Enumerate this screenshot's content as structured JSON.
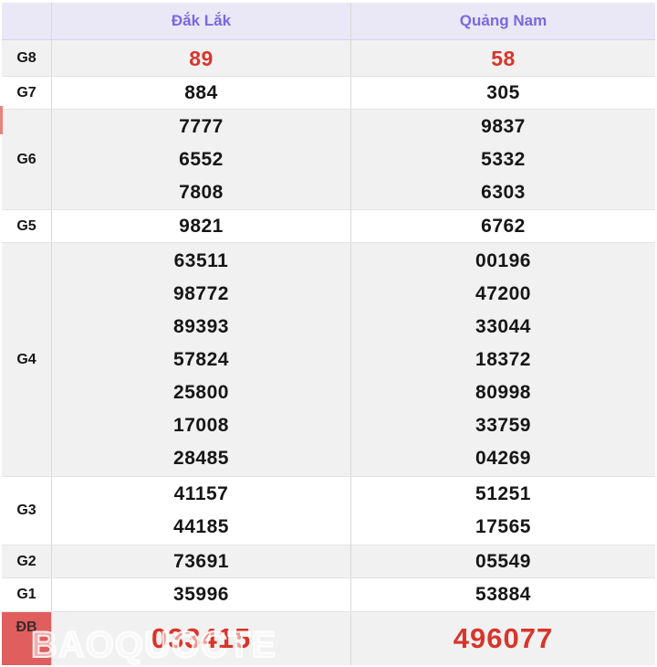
{
  "table": {
    "header": {
      "corner": "",
      "col1": "Đắk Lắk",
      "col2": "Quảng Nam"
    },
    "rows": [
      {
        "label": "G8",
        "dakLak": [
          "89"
        ],
        "quangNam": [
          "58"
        ]
      },
      {
        "label": "G7",
        "dakLak": [
          "884"
        ],
        "quangNam": [
          "305"
        ]
      },
      {
        "label": "G6",
        "dakLak": [
          "7777",
          "6552",
          "7808"
        ],
        "quangNam": [
          "9837",
          "5332",
          "6303"
        ]
      },
      {
        "label": "G5",
        "dakLak": [
          "9821"
        ],
        "quangNam": [
          "6762"
        ]
      },
      {
        "label": "G4",
        "dakLak": [
          "63511",
          "98772",
          "89393",
          "57824",
          "25800",
          "17008",
          "28485"
        ],
        "quangNam": [
          "00196",
          "47200",
          "33044",
          "18372",
          "80998",
          "33759",
          "04269"
        ]
      },
      {
        "label": "G3",
        "dakLak": [
          "41157",
          "44185"
        ],
        "quangNam": [
          "51251",
          "17565"
        ]
      },
      {
        "label": "G2",
        "dakLak": [
          "73691"
        ],
        "quangNam": [
          "05549"
        ]
      },
      {
        "label": "G1",
        "dakLak": [
          "35996"
        ],
        "quangNam": [
          "53884"
        ]
      },
      {
        "label": "ĐB",
        "dakLak": [
          "033415"
        ],
        "quangNam": [
          "496077"
        ]
      }
    ]
  },
  "watermark": {
    "text": "BAOQUOCTE"
  },
  "colors": {
    "header_bg": "#eae8f7",
    "header_text": "#7b68e0",
    "zebra_gray": "#f1f1f1",
    "red_number": "#d8352b",
    "db_label_bg": "#e05e5e",
    "border": "#e3e3e3"
  }
}
